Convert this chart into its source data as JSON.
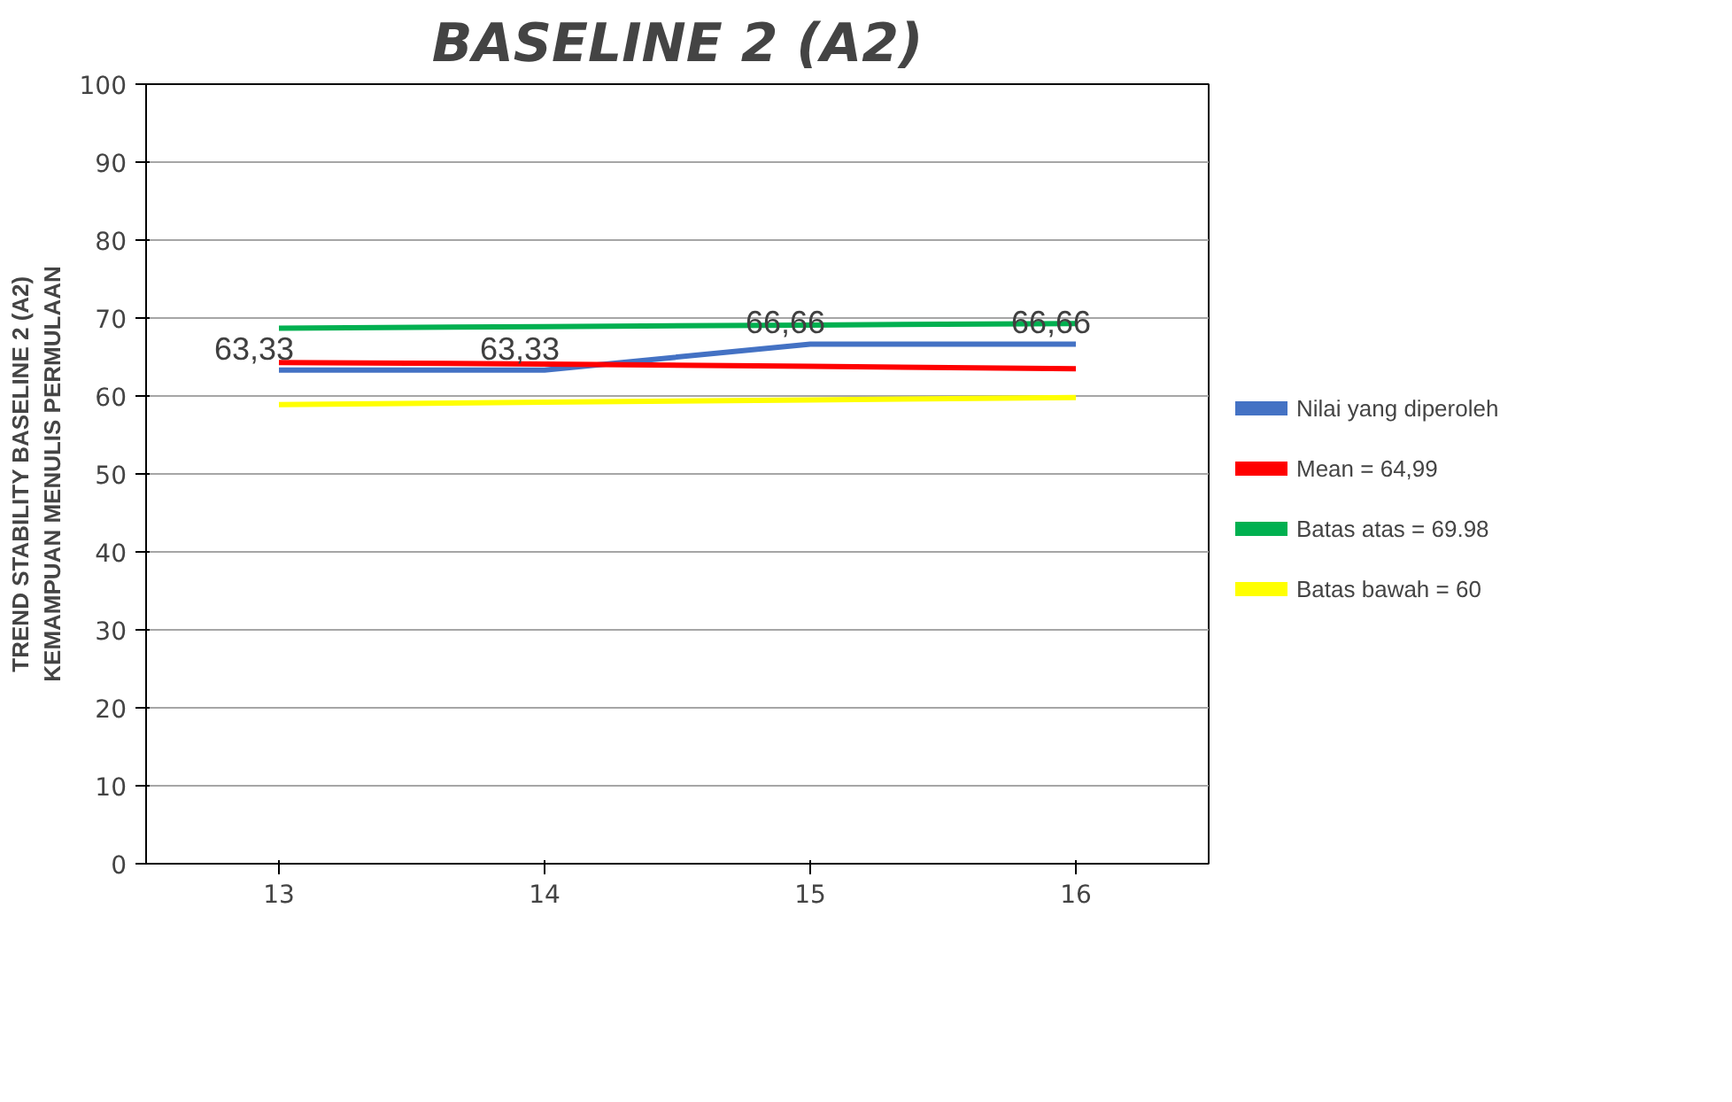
{
  "chart_data": {
    "type": "line",
    "title": "BASELINE 2 (A2)",
    "ylabel": "TREND STABILITY BASELINE 2 (A2)\nKEMAMPUAN MENULIS PERMULAAN",
    "categories": [
      "13",
      "14",
      "15",
      "16"
    ],
    "series": [
      {
        "name": "Nilai yang diperoleh",
        "color": "#4472c4",
        "values": [
          63.33,
          63.33,
          66.66,
          66.66
        ],
        "value_labels": [
          "63,33",
          "63,33",
          "66,66",
          "66,66"
        ]
      },
      {
        "name": "Mean = 64,99",
        "color": "#ff0000",
        "values": [
          64.3,
          64.1,
          63.8,
          63.5
        ]
      },
      {
        "name": "Batas atas = 69.98",
        "color": "#00b050",
        "values": [
          68.7,
          68.9,
          69.1,
          69.3
        ]
      },
      {
        "name": "Batas bawah = 60",
        "color": "#ffff00",
        "values": [
          58.9,
          59.2,
          59.5,
          59.8
        ]
      }
    ],
    "ylim": [
      0,
      100
    ],
    "yticks": [
      0,
      10,
      20,
      30,
      40,
      50,
      60,
      70,
      80,
      90,
      100
    ],
    "grid": "y",
    "legend": "right",
    "marker": "none",
    "line_style": "solid"
  }
}
